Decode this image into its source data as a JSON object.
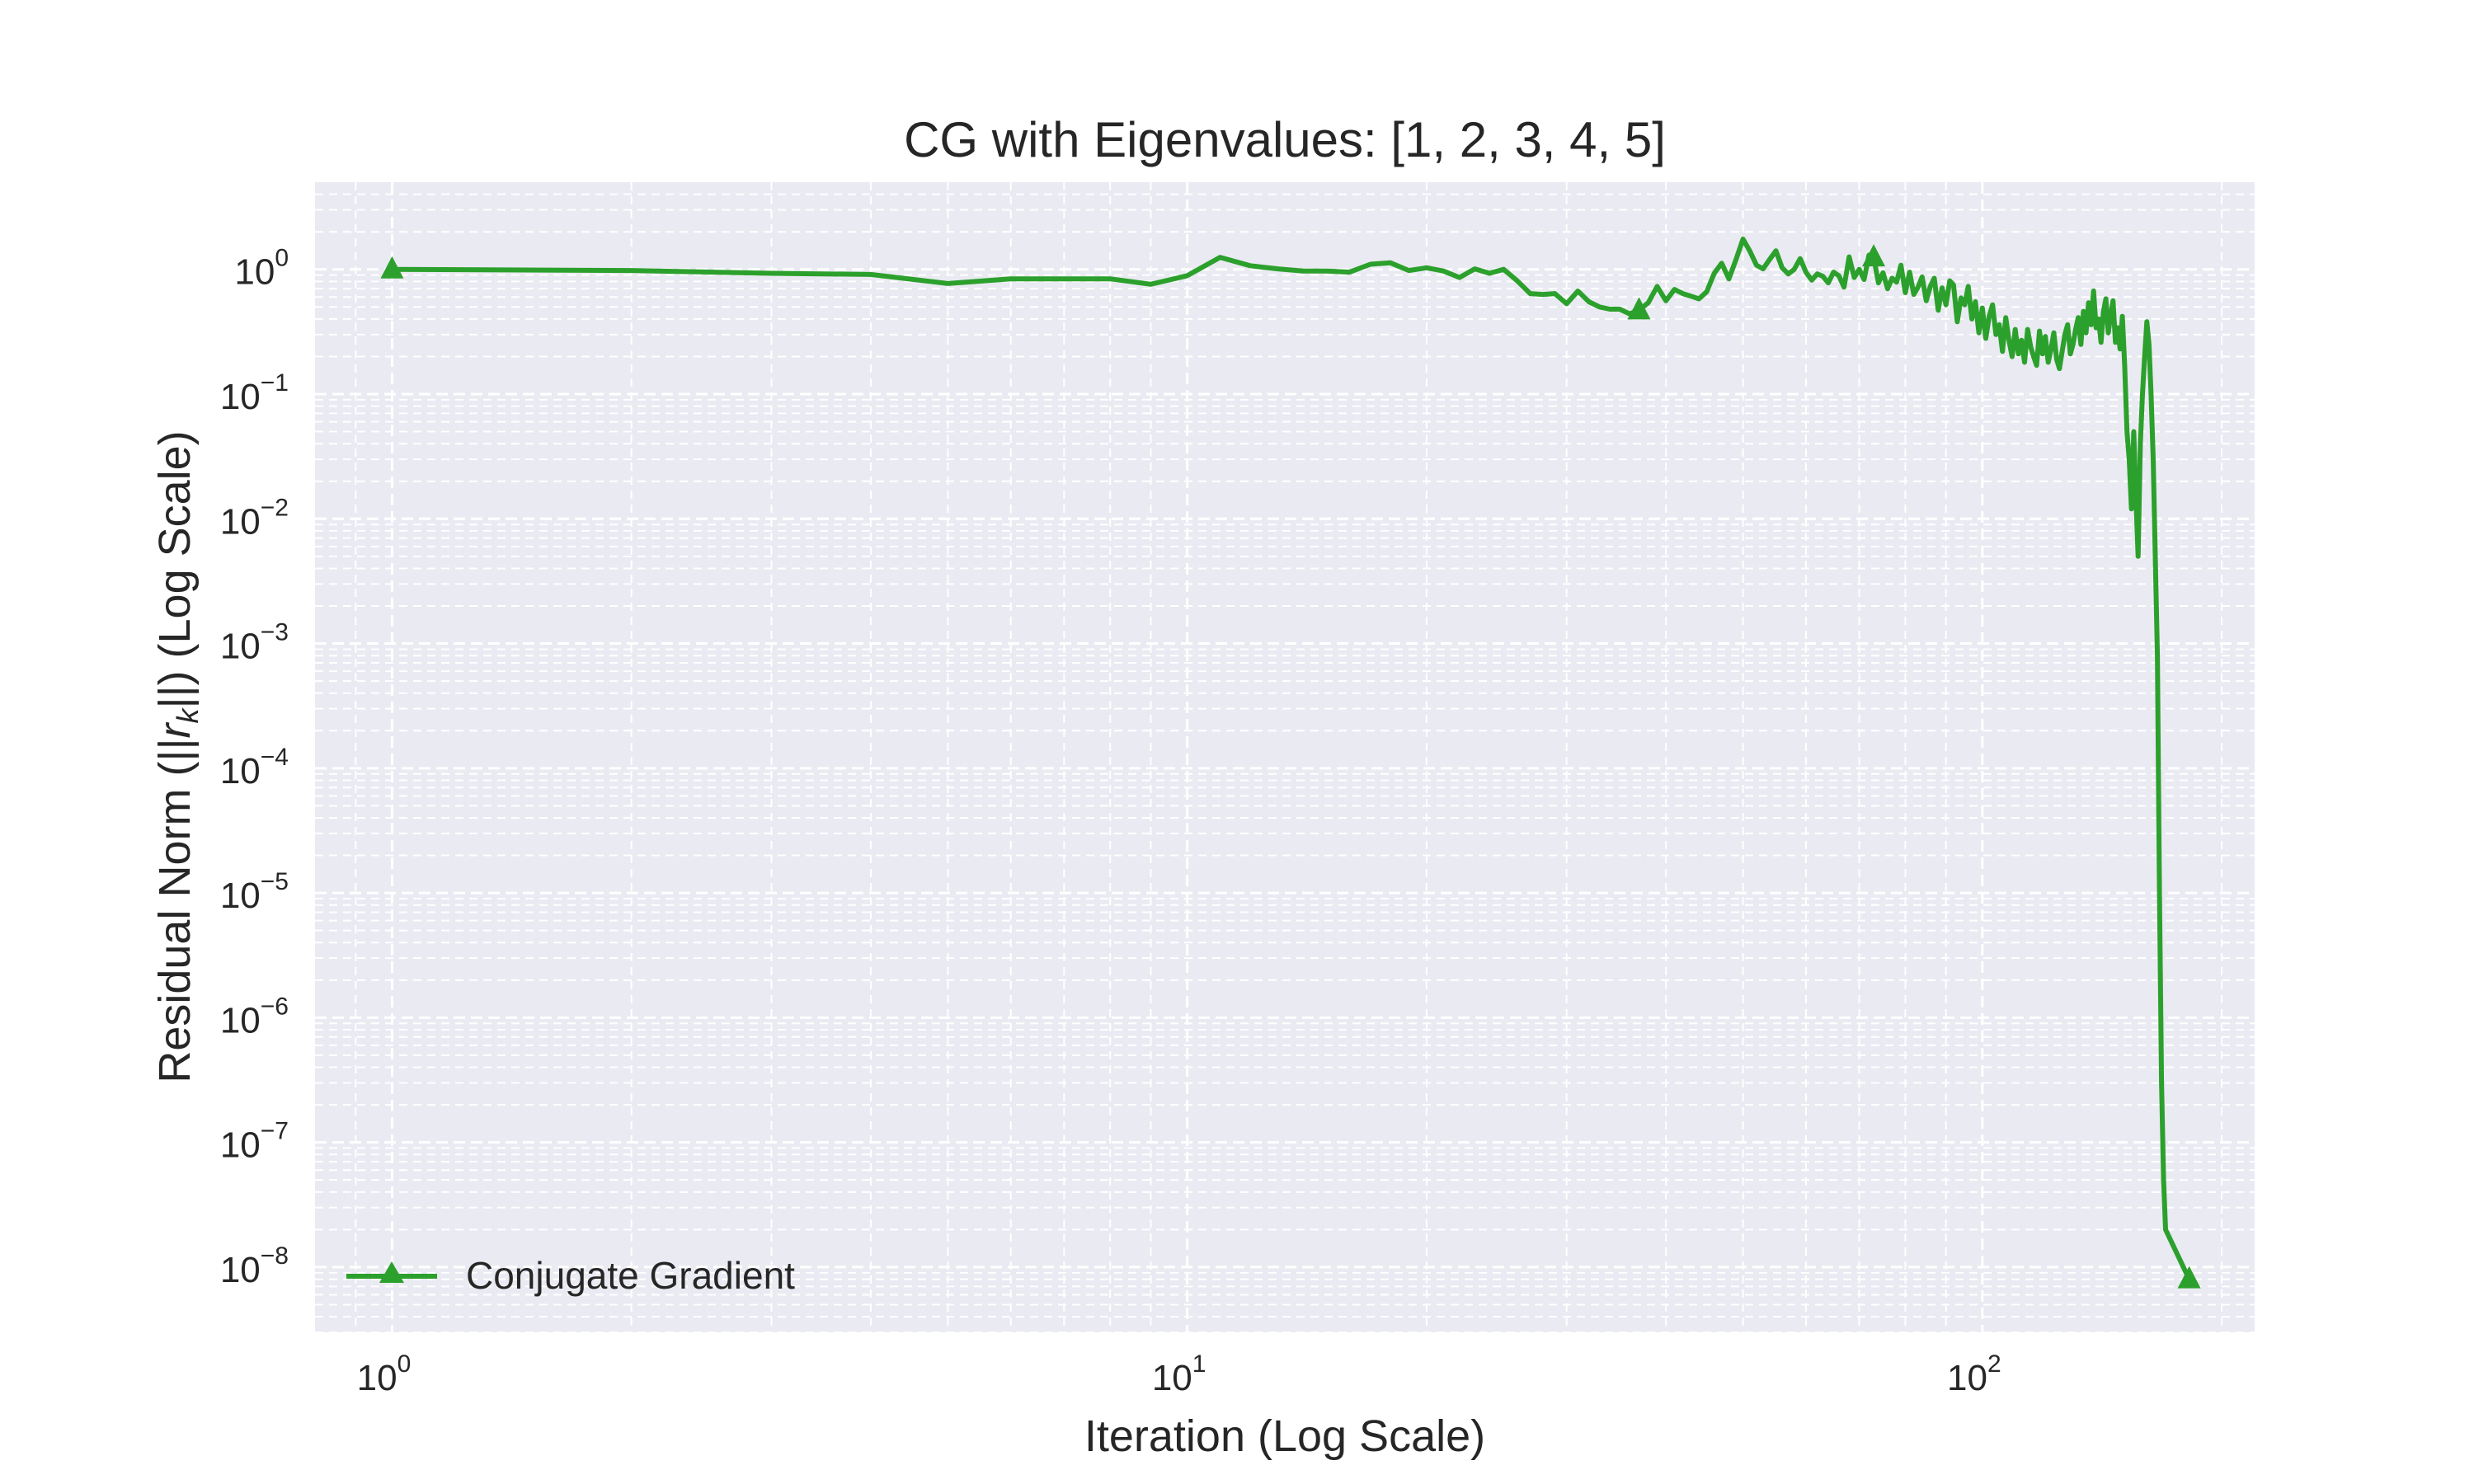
{
  "chart_data": {
    "type": "line",
    "title": "CG with Eigenvalues: [1, 2, 3, 4, 5]",
    "xlabel": "Iteration (Log Scale)",
    "ylabel_parts": [
      "Residual Norm (||",
      "r",
      "k",
      "||) (Log Scale)"
    ],
    "xscale": "log",
    "yscale": "log",
    "xlim": [
      0.8,
      220
    ],
    "ylim": [
      3e-09,
      5
    ],
    "x_ticks": [
      {
        "base": "10",
        "exp": "0",
        "value": 1
      },
      {
        "base": "10",
        "exp": "1",
        "value": 10
      },
      {
        "base": "10",
        "exp": "2",
        "value": 100
      }
    ],
    "y_ticks": [
      {
        "base": "10",
        "exp": "0",
        "value": 1
      },
      {
        "base": "10",
        "exp": "−1",
        "value": 0.1
      },
      {
        "base": "10",
        "exp": "−2",
        "value": 0.01
      },
      {
        "base": "10",
        "exp": "−3",
        "value": 0.001
      },
      {
        "base": "10",
        "exp": "−4",
        "value": 0.0001
      },
      {
        "base": "10",
        "exp": "−5",
        "value": 1e-05
      },
      {
        "base": "10",
        "exp": "−6",
        "value": 1e-06
      },
      {
        "base": "10",
        "exp": "−7",
        "value": 1e-07
      },
      {
        "base": "10",
        "exp": "−8",
        "value": 1e-08
      }
    ],
    "grid": true,
    "legend_position": "bottom-left",
    "series": [
      {
        "name": "Conjugate Gradient",
        "color": "#2ca02c",
        "marker": "triangle-up",
        "marker_points": [
          [
            1,
            1.0
          ],
          [
            37,
            0.47
          ],
          [
            73,
            1.25
          ],
          [
            182,
            8e-09
          ]
        ],
        "points": [
          [
            1,
            1.0
          ],
          [
            2,
            0.98
          ],
          [
            3,
            0.93
          ],
          [
            4,
            0.91
          ],
          [
            5,
            0.77
          ],
          [
            6,
            0.84
          ],
          [
            7,
            0.84
          ],
          [
            8,
            0.84
          ],
          [
            9,
            0.76
          ],
          [
            10,
            0.89
          ],
          [
            11,
            1.25
          ],
          [
            12,
            1.07
          ],
          [
            13,
            1.01
          ],
          [
            14,
            0.97
          ],
          [
            15,
            0.97
          ],
          [
            16,
            0.95
          ],
          [
            17,
            1.1
          ],
          [
            18,
            1.13
          ],
          [
            19,
            0.98
          ],
          [
            20,
            1.03
          ],
          [
            21,
            0.97
          ],
          [
            22,
            0.86
          ],
          [
            23,
            1.01
          ],
          [
            24,
            0.93
          ],
          [
            25,
            1.0
          ],
          [
            26,
            0.81
          ],
          [
            27,
            0.64
          ],
          [
            28,
            0.63
          ],
          [
            29,
            0.64
          ],
          [
            30,
            0.53
          ],
          [
            31,
            0.67
          ],
          [
            32,
            0.55
          ],
          [
            33,
            0.5
          ],
          [
            34,
            0.48
          ],
          [
            35,
            0.48
          ],
          [
            36,
            0.44
          ],
          [
            37,
            0.47
          ],
          [
            38,
            0.54
          ],
          [
            39,
            0.73
          ],
          [
            40,
            0.56
          ],
          [
            41,
            0.69
          ],
          [
            42,
            0.64
          ],
          [
            43,
            0.61
          ],
          [
            44,
            0.58
          ],
          [
            45,
            0.66
          ],
          [
            46,
            0.93
          ],
          [
            47,
            1.12
          ],
          [
            48,
            0.84
          ],
          [
            49,
            1.2
          ],
          [
            50,
            1.75
          ],
          [
            51,
            1.4
          ],
          [
            52,
            1.08
          ],
          [
            53,
            1.01
          ],
          [
            54,
            1.2
          ],
          [
            55,
            1.41
          ],
          [
            56,
            1.03
          ],
          [
            57,
            0.92
          ],
          [
            58,
            1.0
          ],
          [
            59,
            1.22
          ],
          [
            60,
            0.95
          ],
          [
            61,
            0.82
          ],
          [
            62,
            0.92
          ],
          [
            63,
            0.88
          ],
          [
            64,
            0.78
          ],
          [
            65,
            0.95
          ],
          [
            66,
            0.89
          ],
          [
            67,
            0.72
          ],
          [
            68,
            1.26
          ],
          [
            69,
            0.86
          ],
          [
            70,
            1.0
          ],
          [
            71,
            0.83
          ],
          [
            72,
            1.3
          ],
          [
            73,
            1.25
          ],
          [
            74,
            0.78
          ],
          [
            75,
            0.94
          ],
          [
            76,
            0.7
          ],
          [
            77,
            0.85
          ],
          [
            78,
            0.79
          ],
          [
            79,
            1.08
          ],
          [
            80,
            0.65
          ],
          [
            81,
            0.95
          ],
          [
            82,
            0.63
          ],
          [
            83,
            0.72
          ],
          [
            84,
            0.87
          ],
          [
            85,
            0.56
          ],
          [
            86,
            0.73
          ],
          [
            87,
            0.85
          ],
          [
            88,
            0.47
          ],
          [
            89,
            0.71
          ],
          [
            90,
            0.52
          ],
          [
            91,
            0.81
          ],
          [
            92,
            0.75
          ],
          [
            93,
            0.38
          ],
          [
            94,
            0.59
          ],
          [
            95,
            0.52
          ],
          [
            96,
            0.73
          ],
          [
            97,
            0.4
          ],
          [
            98,
            0.55
          ],
          [
            99,
            0.31
          ],
          [
            100,
            0.49
          ],
          [
            101,
            0.28
          ],
          [
            102,
            0.42
          ],
          [
            103,
            0.52
          ],
          [
            104,
            0.3
          ],
          [
            105,
            0.36
          ],
          [
            106,
            0.22
          ],
          [
            107,
            0.41
          ],
          [
            108,
            0.27
          ],
          [
            109,
            0.2
          ],
          [
            110,
            0.33
          ],
          [
            111,
            0.21
          ],
          [
            112,
            0.27
          ],
          [
            113,
            0.18
          ],
          [
            114,
            0.33
          ],
          [
            115,
            0.24
          ],
          [
            116,
            0.2
          ],
          [
            117,
            0.17
          ],
          [
            118,
            0.32
          ],
          [
            119,
            0.21
          ],
          [
            120,
            0.29
          ],
          [
            121,
            0.18
          ],
          [
            122,
            0.23
          ],
          [
            123,
            0.31
          ],
          [
            124,
            0.19
          ],
          [
            125,
            0.16
          ],
          [
            126,
            0.22
          ],
          [
            127,
            0.3
          ],
          [
            128,
            0.36
          ],
          [
            129,
            0.21
          ],
          [
            130,
            0.25
          ],
          [
            131,
            0.33
          ],
          [
            132,
            0.41
          ],
          [
            133,
            0.25
          ],
          [
            134,
            0.46
          ],
          [
            135,
            0.31
          ],
          [
            136,
            0.54
          ],
          [
            137,
            0.36
          ],
          [
            138,
            0.67
          ],
          [
            139,
            0.34
          ],
          [
            140,
            0.4
          ],
          [
            141,
            0.26
          ],
          [
            142,
            0.46
          ],
          [
            143,
            0.58
          ],
          [
            144,
            0.31
          ],
          [
            145,
            0.43
          ],
          [
            146,
            0.56
          ],
          [
            147,
            0.26
          ],
          [
            148,
            0.34
          ],
          [
            149,
            0.23
          ],
          [
            150,
            0.42
          ],
          [
            151,
            0.17
          ],
          [
            152,
            0.05
          ],
          [
            153,
            0.03
          ],
          [
            154,
            0.012
          ],
          [
            155,
            0.05
          ],
          [
            156,
            0.015
          ],
          [
            157,
            0.005
          ],
          [
            158,
            0.04
          ],
          [
            159,
            0.1
          ],
          [
            160,
            0.2
          ],
          [
            161,
            0.38
          ],
          [
            162,
            0.25
          ],
          [
            163,
            0.1
          ],
          [
            164,
            0.03
          ],
          [
            165,
            0.005
          ],
          [
            166,
            0.0008
          ],
          [
            167,
            1e-05
          ],
          [
            168,
            3e-07
          ],
          [
            169,
            5e-08
          ],
          [
            170,
            2e-08
          ],
          [
            182,
            8e-09
          ]
        ]
      }
    ]
  }
}
